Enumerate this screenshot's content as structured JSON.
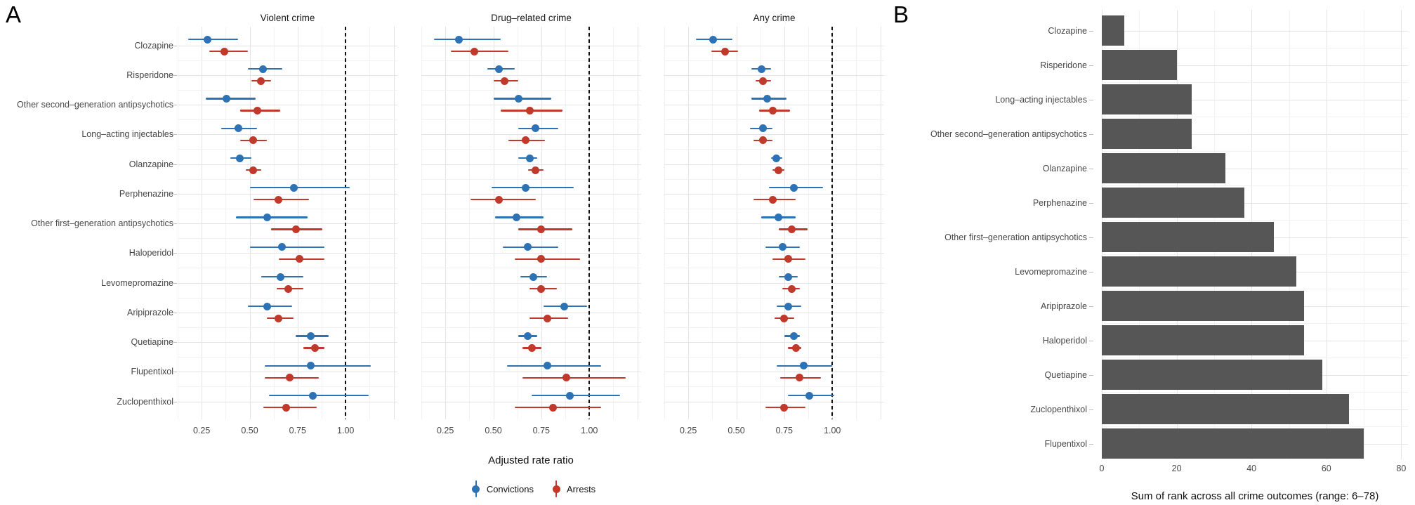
{
  "figure": {
    "panel_a_label": "A",
    "panel_b_label": "B",
    "axis_title_a": "Adjusted rate ratio",
    "axis_title_b": "Sum of rank across all crime outcomes (range: 6–78)",
    "legend": [
      {
        "label": "Convictions",
        "color": "#2d72b5"
      },
      {
        "label": "Arrests",
        "color": "#c0392b"
      }
    ],
    "colors": {
      "convictions_blue": "#2d72b5",
      "arrests_red": "#c0392b",
      "bar_gray": "#565656",
      "grid_major": "#e4e4e4",
      "grid_minor": "#f2f2f2",
      "axis_text": "#474747"
    }
  },
  "chart_data": [
    {
      "type": "scatter",
      "subtype": "forest-pointrange",
      "title": "Violent crime",
      "xlim": [
        0.125,
        1.27
      ],
      "xticks": [
        0.25,
        0.5,
        0.75,
        1.0
      ],
      "xtick_labels": [
        "0.25",
        "0.50",
        "0.75",
        "1.00"
      ],
      "grid_major_x": [
        0.25,
        0.5,
        0.75,
        1.0,
        1.25
      ],
      "grid_minor_x": [
        0.125,
        0.375,
        0.625,
        0.875,
        1.125
      ],
      "reference_line": 1.0,
      "categories": [
        "Clozapine",
        "Risperidone",
        "Other second–generation antipsychotics",
        "Long–acting injectables",
        "Olanzapine",
        "Perphenazine",
        "Other first–generation antipsychotics",
        "Haloperidol",
        "Levomepromazine",
        "Aripiprazole",
        "Quetiapine",
        "Flupentixol",
        "Zuclopenthixol"
      ],
      "series": [
        {
          "name": "Convictions",
          "color": "#2d72b5",
          "values": [
            [
              0.28,
              0.18,
              0.44
            ],
            [
              0.57,
              0.49,
              0.67
            ],
            [
              0.38,
              0.27,
              0.53
            ],
            [
              0.44,
              0.35,
              0.54
            ],
            [
              0.45,
              0.4,
              0.51
            ],
            [
              0.73,
              0.5,
              1.02
            ],
            [
              0.59,
              0.43,
              0.8
            ],
            [
              0.67,
              0.5,
              0.89
            ],
            [
              0.66,
              0.56,
              0.78
            ],
            [
              0.59,
              0.49,
              0.72
            ],
            [
              0.82,
              0.74,
              0.91
            ],
            [
              0.82,
              0.58,
              1.13
            ],
            [
              0.83,
              0.6,
              1.12
            ]
          ]
        },
        {
          "name": "Arrests",
          "color": "#c0392b",
          "values": [
            [
              0.37,
              0.29,
              0.49
            ],
            [
              0.56,
              0.51,
              0.61
            ],
            [
              0.54,
              0.45,
              0.66
            ],
            [
              0.52,
              0.45,
              0.59
            ],
            [
              0.52,
              0.48,
              0.56
            ],
            [
              0.65,
              0.52,
              0.81
            ],
            [
              0.74,
              0.61,
              0.88
            ],
            [
              0.76,
              0.65,
              0.89
            ],
            [
              0.7,
              0.64,
              0.78
            ],
            [
              0.65,
              0.59,
              0.73
            ],
            [
              0.84,
              0.78,
              0.89
            ],
            [
              0.71,
              0.58,
              0.86
            ],
            [
              0.69,
              0.57,
              0.85
            ]
          ]
        }
      ]
    },
    {
      "type": "scatter",
      "subtype": "forest-pointrange",
      "title": "Drug–related crime",
      "xlim": [
        0.125,
        1.27
      ],
      "xticks": [
        0.25,
        0.5,
        0.75,
        1.0
      ],
      "xtick_labels": [
        "0.25",
        "0.50",
        "0.75",
        "1.00"
      ],
      "grid_major_x": [
        0.25,
        0.5,
        0.75,
        1.0,
        1.25
      ],
      "grid_minor_x": [
        0.125,
        0.375,
        0.625,
        0.875,
        1.125
      ],
      "reference_line": 1.0,
      "categories": [
        "Clozapine",
        "Risperidone",
        "Other second–generation antipsychotics",
        "Long–acting injectables",
        "Olanzapine",
        "Perphenazine",
        "Other first–generation antipsychotics",
        "Haloperidol",
        "Levomepromazine",
        "Aripiprazole",
        "Quetiapine",
        "Flupentixol",
        "Zuclopenthixol"
      ],
      "series": [
        {
          "name": "Convictions",
          "color": "#2d72b5",
          "values": [
            [
              0.32,
              0.19,
              0.54
            ],
            [
              0.53,
              0.47,
              0.61
            ],
            [
              0.63,
              0.5,
              0.8
            ],
            [
              0.72,
              0.63,
              0.84
            ],
            [
              0.69,
              0.63,
              0.73
            ],
            [
              0.67,
              0.49,
              0.92
            ],
            [
              0.62,
              0.51,
              0.76
            ],
            [
              0.68,
              0.55,
              0.84
            ],
            [
              0.71,
              0.64,
              0.78
            ],
            [
              0.87,
              0.76,
              0.99
            ],
            [
              0.68,
              0.63,
              0.73
            ],
            [
              0.78,
              0.57,
              1.06
            ],
            [
              0.9,
              0.7,
              1.16
            ]
          ]
        },
        {
          "name": "Arrests",
          "color": "#c0392b",
          "values": [
            [
              0.4,
              0.28,
              0.58
            ],
            [
              0.56,
              0.5,
              0.63
            ],
            [
              0.69,
              0.54,
              0.86
            ],
            [
              0.67,
              0.58,
              0.77
            ],
            [
              0.72,
              0.68,
              0.76
            ],
            [
              0.53,
              0.38,
              0.72
            ],
            [
              0.75,
              0.63,
              0.91
            ],
            [
              0.75,
              0.61,
              0.95
            ],
            [
              0.75,
              0.69,
              0.83
            ],
            [
              0.78,
              0.69,
              0.89
            ],
            [
              0.7,
              0.65,
              0.75
            ],
            [
              0.88,
              0.65,
              1.19
            ],
            [
              0.81,
              0.61,
              1.06
            ]
          ]
        }
      ]
    },
    {
      "type": "scatter",
      "subtype": "forest-pointrange",
      "title": "Any crime",
      "xlim": [
        0.125,
        1.27
      ],
      "xticks": [
        0.25,
        0.5,
        0.75,
        1.0
      ],
      "xtick_labels": [
        "0.25",
        "0.50",
        "0.75",
        "1.00"
      ],
      "grid_major_x": [
        0.25,
        0.5,
        0.75,
        1.0,
        1.25
      ],
      "grid_minor_x": [
        0.125,
        0.375,
        0.625,
        0.875,
        1.125
      ],
      "reference_line": 1.0,
      "categories": [
        "Clozapine",
        "Risperidone",
        "Other second–generation antipsychotics",
        "Long–acting injectables",
        "Olanzapine",
        "Perphenazine",
        "Other first–generation antipsychotics",
        "Haloperidol",
        "Levomepromazine",
        "Aripiprazole",
        "Quetiapine",
        "Flupentixol",
        "Zuclopenthixol"
      ],
      "series": [
        {
          "name": "Convictions",
          "color": "#2d72b5",
          "values": [
            [
              0.38,
              0.29,
              0.48
            ],
            [
              0.63,
              0.58,
              0.68
            ],
            [
              0.66,
              0.58,
              0.76
            ],
            [
              0.64,
              0.57,
              0.69
            ],
            [
              0.71,
              0.68,
              0.74
            ],
            [
              0.8,
              0.67,
              0.95
            ],
            [
              0.72,
              0.63,
              0.81
            ],
            [
              0.74,
              0.65,
              0.83
            ],
            [
              0.77,
              0.72,
              0.82
            ],
            [
              0.77,
              0.71,
              0.84
            ],
            [
              0.8,
              0.75,
              0.83
            ],
            [
              0.85,
              0.71,
              1.0
            ],
            [
              0.88,
              0.77,
              1.01
            ]
          ]
        },
        {
          "name": "Arrests",
          "color": "#c0392b",
          "values": [
            [
              0.44,
              0.37,
              0.51
            ],
            [
              0.64,
              0.6,
              0.68
            ],
            [
              0.69,
              0.62,
              0.78
            ],
            [
              0.64,
              0.59,
              0.69
            ],
            [
              0.72,
              0.69,
              0.75
            ],
            [
              0.69,
              0.59,
              0.81
            ],
            [
              0.79,
              0.72,
              0.87
            ],
            [
              0.77,
              0.69,
              0.86
            ],
            [
              0.79,
              0.74,
              0.83
            ],
            [
              0.75,
              0.7,
              0.8
            ],
            [
              0.81,
              0.77,
              0.84
            ],
            [
              0.83,
              0.73,
              0.94
            ],
            [
              0.75,
              0.65,
              0.86
            ]
          ]
        }
      ]
    },
    {
      "type": "bar",
      "orientation": "horizontal",
      "title": "",
      "xlabel": "Sum of rank across all crime outcomes (range: 6–78)",
      "xlim": [
        0,
        81.8
      ],
      "xticks": [
        0,
        20,
        40,
        60,
        80
      ],
      "xtick_labels": [
        "0",
        "20",
        "40",
        "60",
        "80"
      ],
      "grid_major_x": [
        0,
        20,
        40,
        60,
        80
      ],
      "grid_minor_x": [
        10,
        30,
        50,
        70
      ],
      "bar_color": "#565656",
      "categories": [
        "Clozapine",
        "Risperidone",
        "Long–acting injectables",
        "Other second–generation antipsychotics",
        "Olanzapine",
        "Perphenazine",
        "Other first–generation antipsychotics",
        "Levomepromazine",
        "Aripiprazole",
        "Haloperidol",
        "Quetiapine",
        "Zuclopenthixol",
        "Flupentixol"
      ],
      "values": [
        6,
        20,
        24,
        24,
        33,
        38,
        46,
        52,
        54,
        54,
        59,
        66,
        70
      ]
    }
  ]
}
